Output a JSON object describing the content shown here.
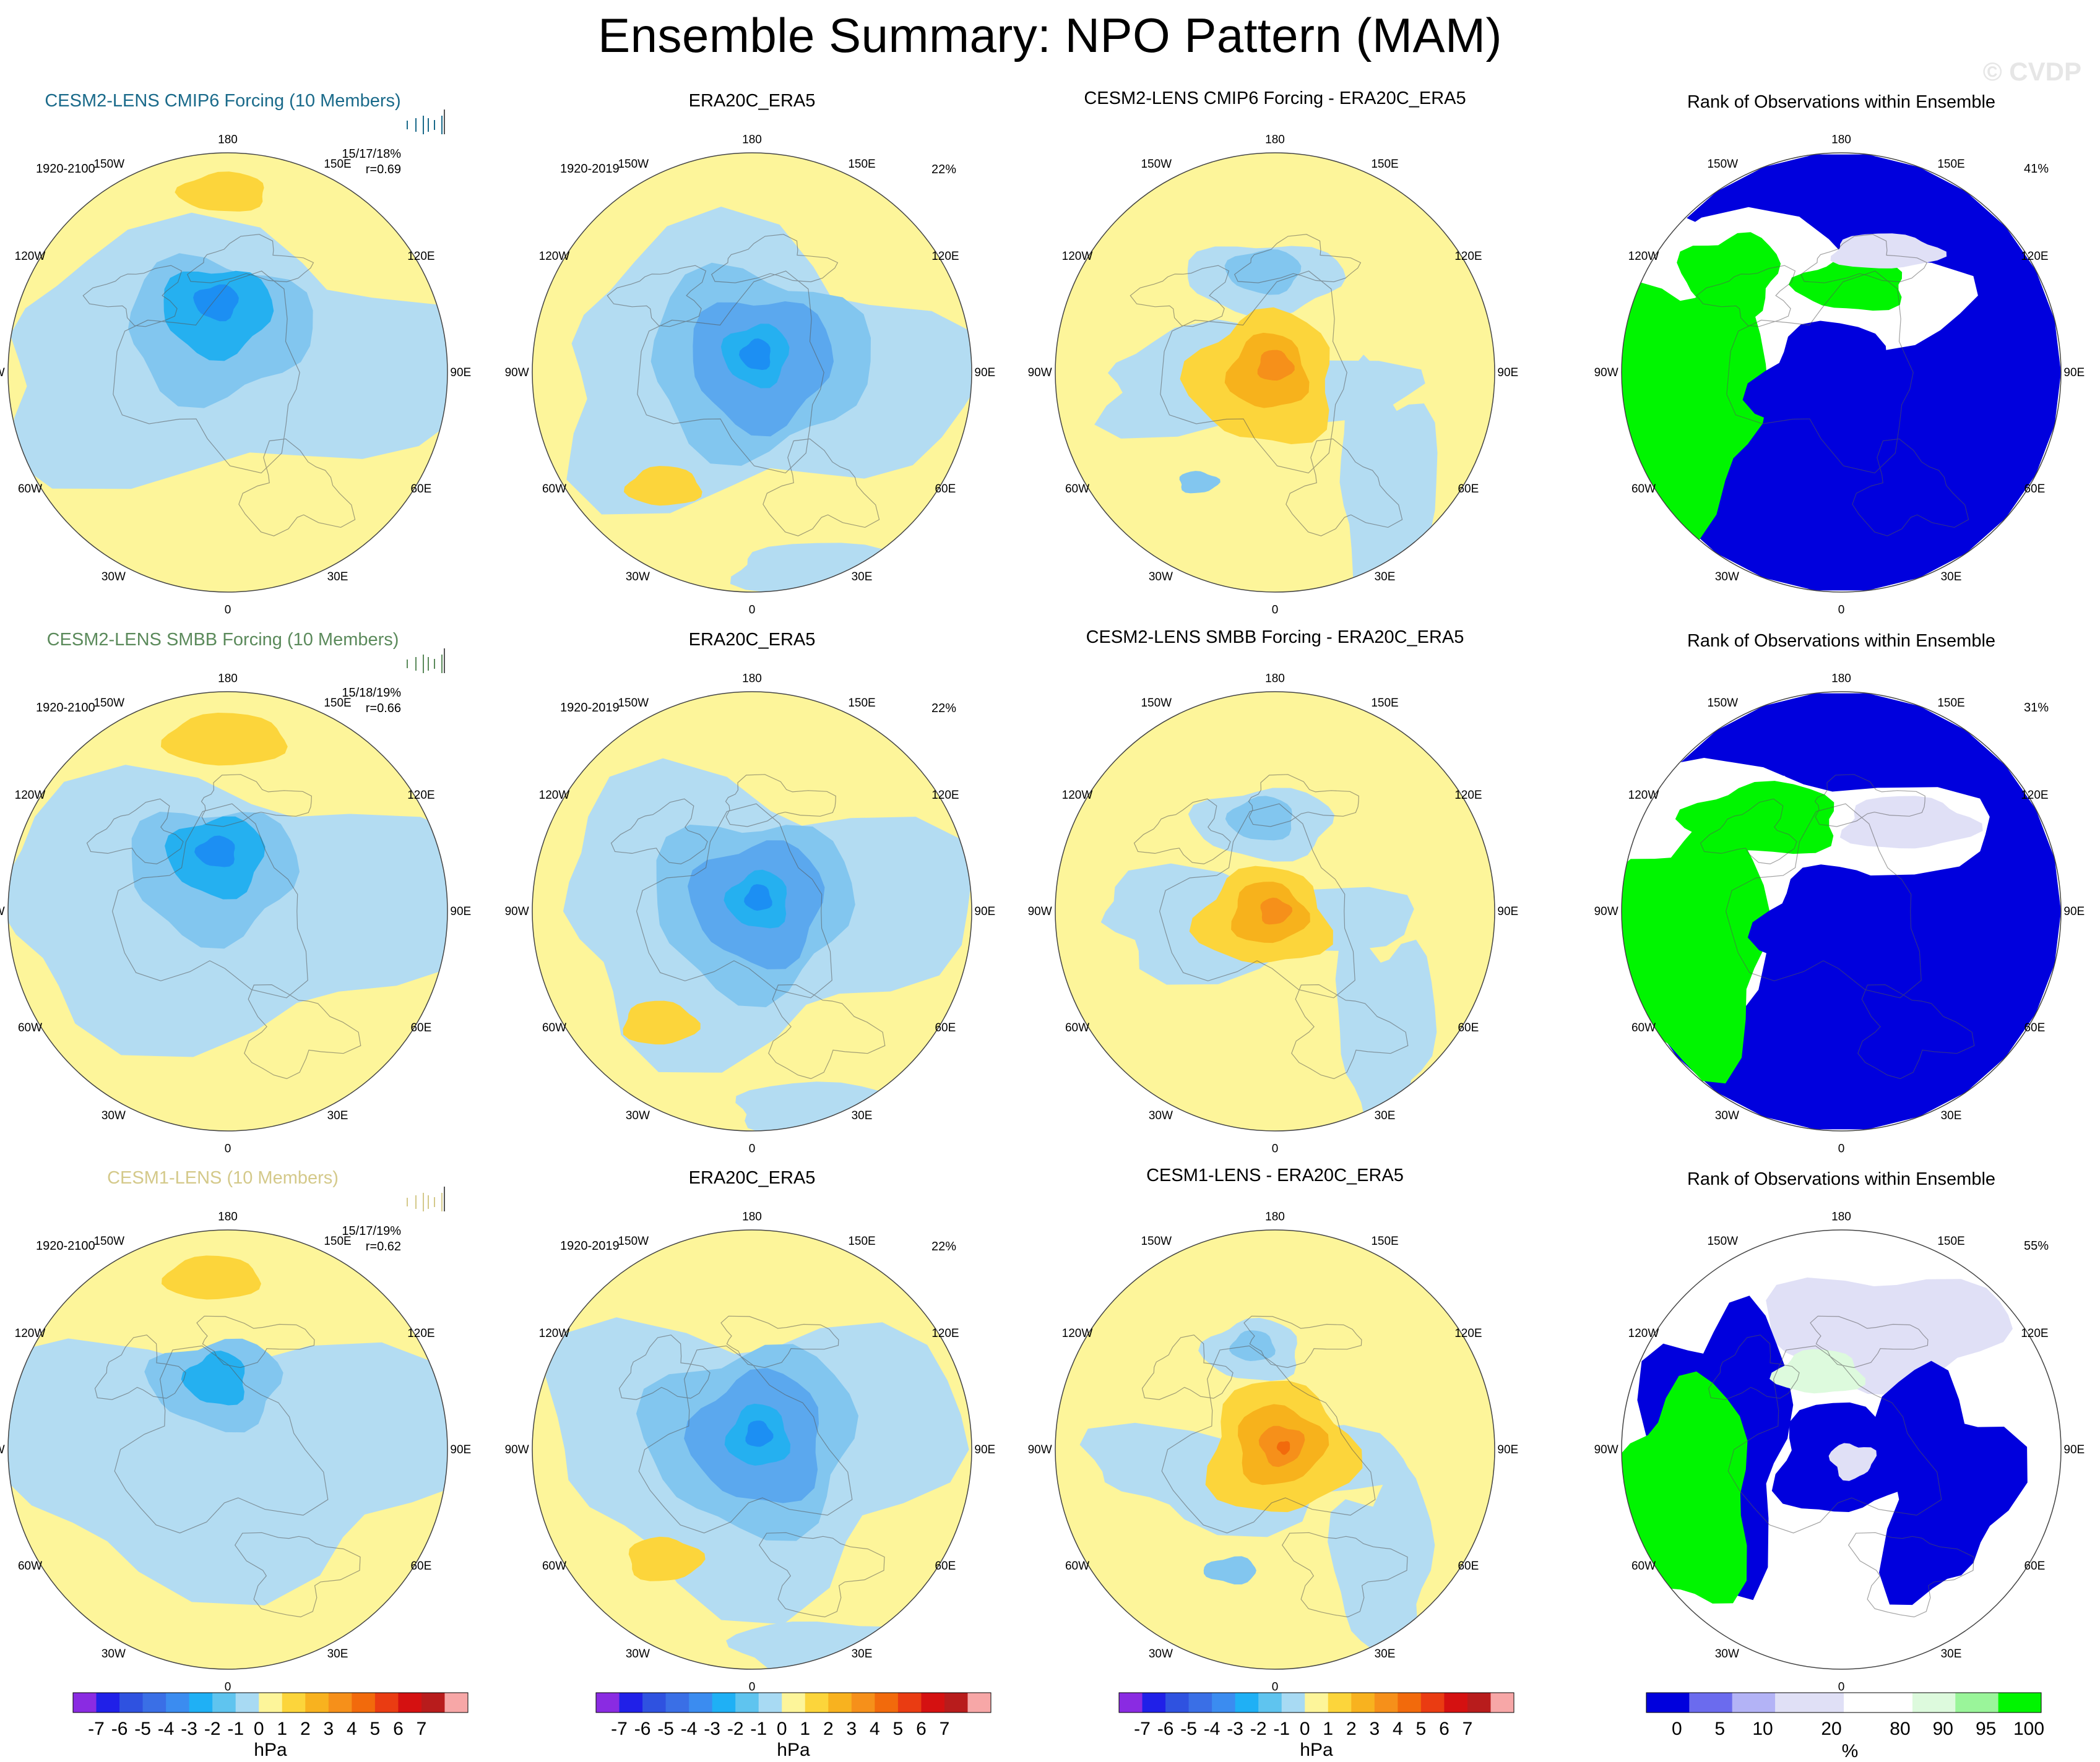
{
  "title": "Ensemble Summary: NPO Pattern (MAM)",
  "watermark": "© CVDP",
  "colors": {
    "yellow": "#fdf59a",
    "lightblue": "#b3dcf2",
    "pos1": "#fcd53b",
    "pos2": "#f7b21c",
    "pos3": "#f6901a",
    "pos4": "#f26a0c",
    "neg1": "#82c6ef",
    "neg2": "#5ba8ee",
    "neg3": "#25b0f0",
    "neg4": "#1c8ff3",
    "rank_blue": "#0000dd",
    "rank_green": "#00f500",
    "rank_white": "#ffffff",
    "rank_lavender": "#e0e0f6",
    "rank_palegreen": "#ddfadd",
    "model1_title": "#1a6a8a",
    "model2_title": "#5b8a5b",
    "model3_title": "#d4c98a"
  },
  "lon_labels": [
    "180",
    "150E",
    "120E",
    "90E",
    "60E",
    "30E",
    "0",
    "30W",
    "60W",
    "90W",
    "120W",
    "150W"
  ],
  "rows": [
    {
      "model_title": "CESM2-LENS CMIP6 Forcing (10 Members)",
      "model_years": "1920-2100",
      "model_stats": "15/17/18%",
      "model_r": "r=0.69",
      "obs_title": "ERA20C_ERA5",
      "obs_years": "1920-2019",
      "obs_pct": "22%",
      "diff_title": "CESM2-LENS CMIP6 Forcing - ERA20C_ERA5",
      "rank_title": "Rank of Observations within Ensemble",
      "rank_pct": "41%"
    },
    {
      "model_title": "CESM2-LENS SMBB Forcing (10 Members)",
      "model_years": "1920-2100",
      "model_stats": "15/18/19%",
      "model_r": "r=0.66",
      "obs_title": "ERA20C_ERA5",
      "obs_years": "1920-2019",
      "obs_pct": "22%",
      "diff_title": "CESM2-LENS SMBB Forcing - ERA20C_ERA5",
      "rank_title": "Rank of Observations within Ensemble",
      "rank_pct": "31%"
    },
    {
      "model_title": "CESM1-LENS (10 Members)",
      "model_years": "1920-2100",
      "model_stats": "15/17/19%",
      "model_r": "r=0.62",
      "obs_title": "ERA20C_ERA5",
      "obs_years": "1920-2019",
      "obs_pct": "22%",
      "diff_title": "CESM1-LENS - ERA20C_ERA5",
      "rank_title": "Rank of Observations within Ensemble",
      "rank_pct": "55%"
    }
  ],
  "chart_data": [
    {
      "type": "heatmap",
      "name": "hPa colorbar (model, obs, difference panels)",
      "levels": [
        -7,
        -6,
        -5,
        -4,
        -3,
        -2,
        -1,
        0,
        1,
        2,
        3,
        4,
        5,
        6,
        7
      ],
      "tick_labels": [
        "-7",
        "-6",
        "-5",
        "-4",
        "-3",
        "-2",
        "-1",
        "0",
        "1",
        "2",
        "3",
        "4",
        "5",
        "6",
        "7"
      ],
      "colors": [
        "#8a2be2",
        "#2020e8",
        "#2f52e0",
        "#3a6fe6",
        "#3b8cf0",
        "#1fb0f5",
        "#5fc4ef",
        "#a8daf3",
        "#fdf59a",
        "#fcd53b",
        "#f8b21f",
        "#f6901a",
        "#f26a0c",
        "#ea3c12",
        "#d51111",
        "#b81c1c",
        "#f7a7a7"
      ],
      "unit": "hPa"
    },
    {
      "type": "heatmap",
      "name": "rank colorbar (percent)",
      "levels": [
        0,
        5,
        10,
        20,
        80,
        90,
        95,
        100
      ],
      "tick_labels": [
        "0",
        "5",
        "10",
        "20",
        "80",
        "90",
        "95",
        "100"
      ],
      "colors": [
        "#0000dd",
        "#6b6bee",
        "#b3b3f6",
        "#e0e0f6",
        "#ffffff",
        "#ddfadd",
        "#9af59a",
        "#00f500"
      ],
      "unit": "%"
    }
  ]
}
